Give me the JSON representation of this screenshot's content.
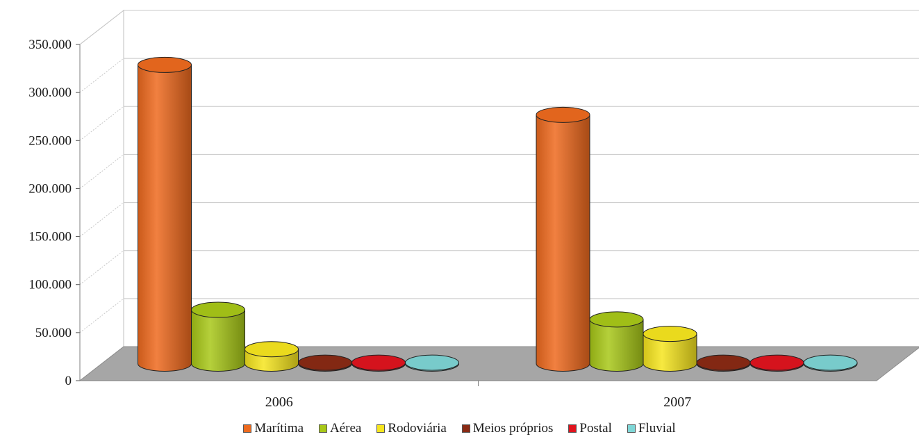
{
  "chart_data": {
    "type": "bar",
    "style": "3d-cylinder",
    "categories": [
      "2006",
      "2007"
    ],
    "series": [
      {
        "name": "Marítima",
        "values": [
          311000,
          259000
        ],
        "color": "#EE6A1E"
      },
      {
        "name": "Aérea",
        "values": [
          56000,
          46000
        ],
        "color": "#A8C818"
      },
      {
        "name": "Rodoviária",
        "values": [
          15000,
          31000
        ],
        "color": "#F6E51E"
      },
      {
        "name": "Meios próprios",
        "values": [
          1000,
          1000
        ],
        "color": "#8A2A14"
      },
      {
        "name": "Postal",
        "values": [
          1000,
          1000
        ],
        "color": "#E0141E"
      },
      {
        "name": "Fluvial",
        "values": [
          1000,
          1000
        ],
        "color": "#7ED6D6"
      }
    ],
    "yticks": [
      "0",
      "50.000",
      "100.000",
      "150.000",
      "200.000",
      "250.000",
      "300.000",
      "350.000"
    ],
    "ylim": [
      0,
      350000
    ],
    "grid": true,
    "legend_position": "bottom",
    "title": "",
    "xlabel": "",
    "ylabel": ""
  }
}
